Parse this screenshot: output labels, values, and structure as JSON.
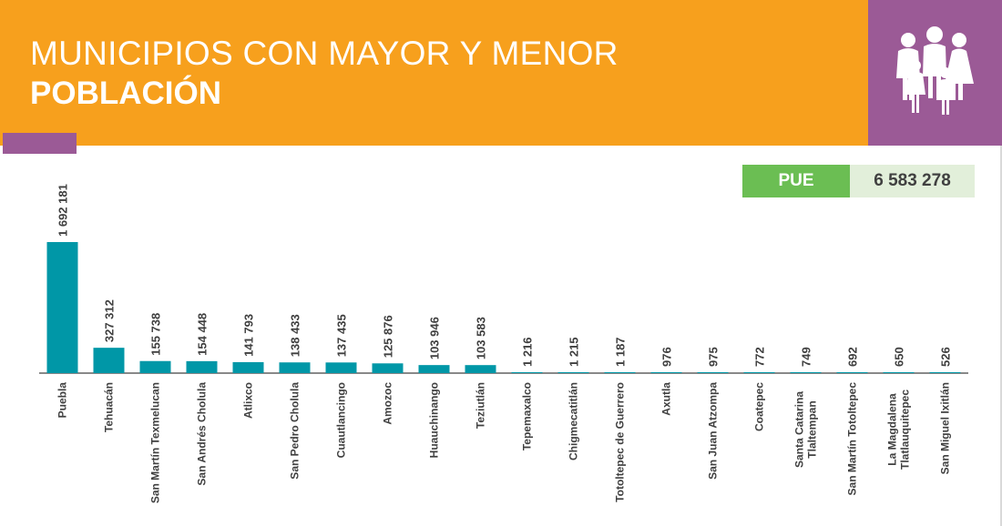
{
  "header": {
    "title_line1": "MUNICIPIOS CON MAYOR Y MENOR",
    "title_line2": "POBLACIÓN",
    "icon": "family-group-icon"
  },
  "state": {
    "label": "PUE",
    "value": "6 583 278"
  },
  "colors": {
    "header_orange": "#F7A01D",
    "accent_purple": "#9B5A96",
    "bar_teal": "#0097A7",
    "state_green": "#6BBE53",
    "state_light_green": "#E2EFDA"
  },
  "chart_data": {
    "type": "bar",
    "title": "",
    "xlabel": "",
    "ylabel": "",
    "ylim": [
      0,
      1692181
    ],
    "categories": [
      [
        "Puebla"
      ],
      [
        "Tehuacán"
      ],
      [
        "San Martín Texmelucan"
      ],
      [
        "San Andrés Cholula"
      ],
      [
        "Atlixco"
      ],
      [
        "San Pedro Cholula"
      ],
      [
        "Cuautlancingo"
      ],
      [
        "Amozoc"
      ],
      [
        "Huauchinango"
      ],
      [
        "Teziutlán"
      ],
      [
        "Tepemaxalco"
      ],
      [
        "Chigmecatitlán"
      ],
      [
        "Totoltepec de Guerrero"
      ],
      [
        "Axutla"
      ],
      [
        "San Juan Atzompa"
      ],
      [
        "Coatepec"
      ],
      [
        "Santa Catarina",
        "Tlaltempan"
      ],
      [
        "San Martín Totoltepec"
      ],
      [
        "La Magdalena",
        "Tlatlauquitepec"
      ],
      [
        "San Miguel Ixitlán"
      ]
    ],
    "values": [
      1692181,
      327312,
      155738,
      154448,
      141793,
      138433,
      137435,
      125876,
      103946,
      103583,
      1216,
      1215,
      1187,
      976,
      975,
      772,
      749,
      692,
      650,
      526
    ],
    "value_labels": [
      "1 692 181",
      "327 312",
      "155 738",
      "154 448",
      "141 793",
      "138 433",
      "137 435",
      "125 876",
      "103 946",
      "103 583",
      "1 216",
      "1 215",
      "1 187",
      "976",
      "975",
      "772",
      "749",
      "692",
      "650",
      "526"
    ],
    "grid": false,
    "legend": "none"
  }
}
